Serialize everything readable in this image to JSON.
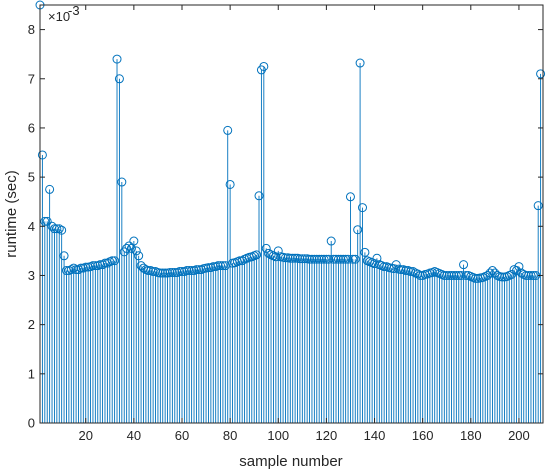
{
  "chart_data": {
    "type": "stem",
    "title": "",
    "xlabel": "sample number",
    "ylabel": "runtime (sec)",
    "y_exponent_label": "×10",
    "y_exponent_power": "-3",
    "xlim": [
      1,
      210
    ],
    "ylim": [
      0,
      8.5
    ],
    "x_ticks": [
      20,
      40,
      60,
      80,
      100,
      120,
      140,
      160,
      180,
      200
    ],
    "y_ticks": [
      0,
      1,
      2,
      3,
      4,
      5,
      6,
      7,
      8
    ],
    "grid": false,
    "marker": "open-circle",
    "color": "#0072BD",
    "series": [
      {
        "x_start": 1,
        "values": [
          8.5,
          5.45,
          4.1,
          4.1,
          4.75,
          4.0,
          3.95,
          3.95,
          3.95,
          3.92,
          3.4,
          3.1,
          3.1,
          3.12,
          3.15,
          3.12,
          3.12,
          3.15,
          3.15,
          3.17,
          3.17,
          3.18,
          3.2,
          3.2,
          3.2,
          3.22,
          3.22,
          3.25,
          3.25,
          3.28,
          3.3,
          3.3,
          7.4,
          7.0,
          4.9,
          3.48,
          3.55,
          3.6,
          3.55,
          3.7,
          3.5,
          3.4,
          3.2,
          3.15,
          3.12,
          3.1,
          3.1,
          3.08,
          3.08,
          3.06,
          3.05,
          3.05,
          3.05,
          3.05,
          3.06,
          3.06,
          3.06,
          3.06,
          3.08,
          3.08,
          3.08,
          3.1,
          3.1,
          3.1,
          3.1,
          3.12,
          3.12,
          3.12,
          3.14,
          3.15,
          3.16,
          3.16,
          3.18,
          3.18,
          3.2,
          3.2,
          3.2,
          3.2,
          5.95,
          4.85,
          3.25,
          3.26,
          3.28,
          3.3,
          3.3,
          3.33,
          3.35,
          3.37,
          3.38,
          3.4,
          3.42,
          4.62,
          7.18,
          7.25,
          3.55,
          3.45,
          3.42,
          3.4,
          3.38,
          3.5,
          3.38,
          3.37,
          3.36,
          3.36,
          3.35,
          3.35,
          3.35,
          3.35,
          3.34,
          3.34,
          3.34,
          3.34,
          3.33,
          3.33,
          3.33,
          3.33,
          3.33,
          3.33,
          3.33,
          3.33,
          3.33,
          3.7,
          3.33,
          3.33,
          3.33,
          3.33,
          3.33,
          3.33,
          3.33,
          4.6,
          3.33,
          3.33,
          3.93,
          7.32,
          4.38,
          3.47,
          3.3,
          3.28,
          3.26,
          3.24,
          3.35,
          3.22,
          3.2,
          3.18,
          3.18,
          3.16,
          3.15,
          3.14,
          3.22,
          3.13,
          3.12,
          3.12,
          3.1,
          3.1,
          3.08,
          3.08,
          3.05,
          3.03,
          3.0,
          3.0,
          3.02,
          3.03,
          3.05,
          3.06,
          3.08,
          3.06,
          3.04,
          3.02,
          3.0,
          3.0,
          3.0,
          3.0,
          3.0,
          3.0,
          3.0,
          3.0,
          3.22,
          3.0,
          3.0,
          2.98,
          2.96,
          2.94,
          2.94,
          2.95,
          2.96,
          2.98,
          3.0,
          3.05,
          3.1,
          3.05,
          3.0,
          2.98,
          2.97,
          2.97,
          2.98,
          3.0,
          3.02,
          3.12,
          3.1,
          3.18,
          3.05,
          3.02,
          3.0,
          3.0,
          3.0,
          3.0,
          3.0,
          4.42,
          7.1
        ]
      }
    ]
  }
}
